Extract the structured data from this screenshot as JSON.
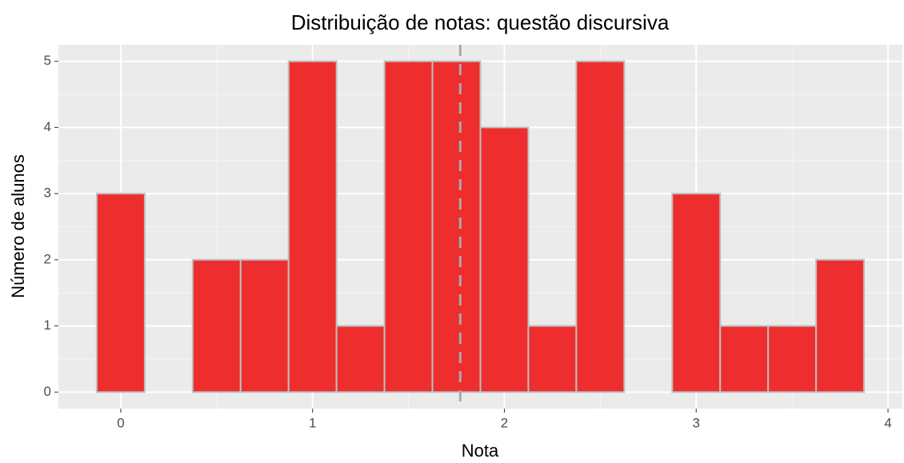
{
  "chart_data": {
    "type": "histogram",
    "title": "Distribuição de notas: questão discursiva",
    "xlabel": "Nota",
    "ylabel": "Número de alunos",
    "bins": [
      -0.125,
      0.125,
      0.375,
      0.625,
      0.875,
      1.125,
      1.375,
      1.625,
      1.875,
      2.125,
      2.375,
      2.625,
      2.875,
      3.125,
      3.375,
      3.625,
      3.875
    ],
    "values": [
      3,
      0,
      2,
      2,
      5,
      1,
      5,
      5,
      4,
      1,
      5,
      0,
      3,
      1,
      1,
      2
    ],
    "color": "#ee2e2e",
    "edge_color": "#bebebe",
    "vline": 1.77,
    "vline_color": "#a9a9a9",
    "xlim": [
      -0.325,
      4.075
    ],
    "xticks": [
      0,
      1,
      2,
      3,
      4
    ],
    "ylim": [
      -0.25,
      5.25
    ],
    "yticks": [
      0,
      1,
      2,
      3,
      4,
      5
    ],
    "grid": true
  }
}
